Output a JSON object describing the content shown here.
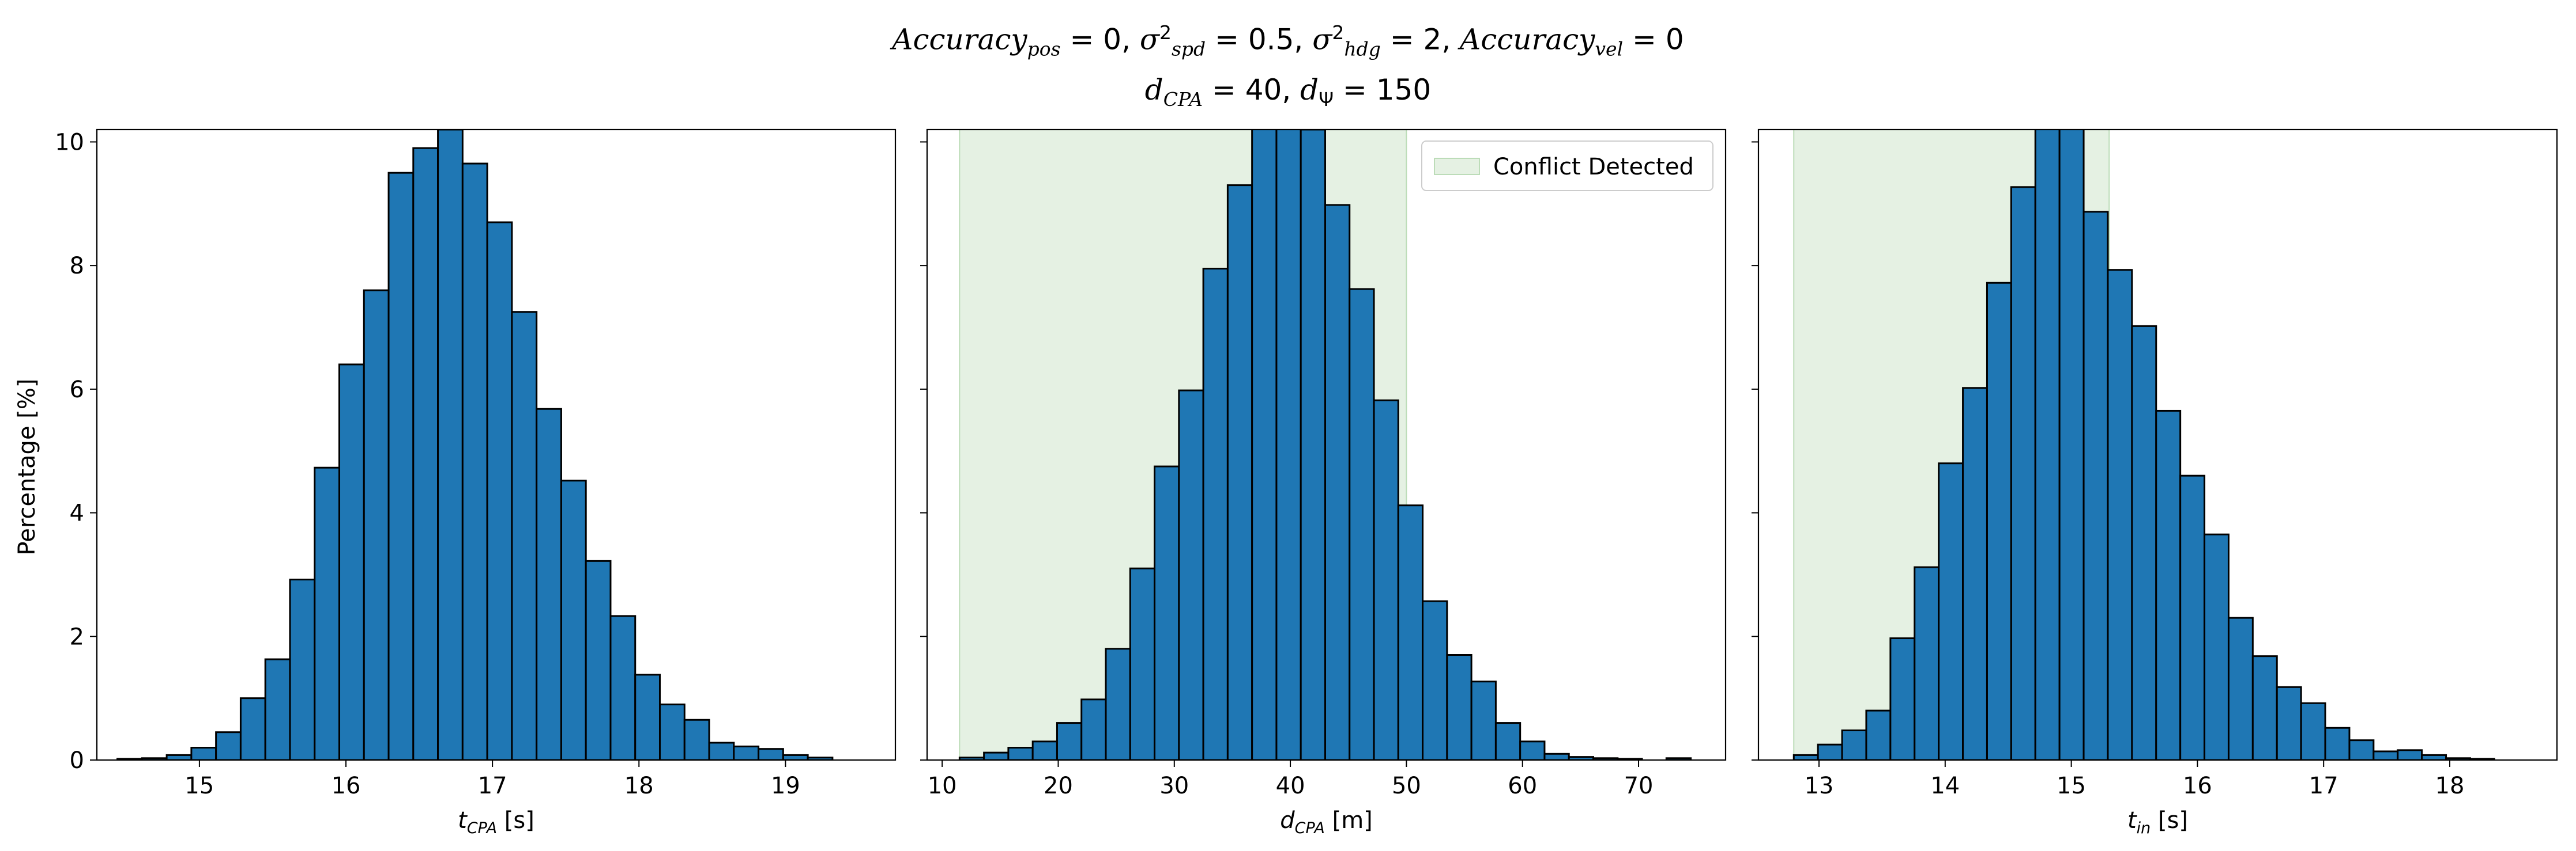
{
  "title": {
    "line1_html": "<i>Accuracy</i><sub><i>pos</i></sub> = 0, <i>σ</i><sup>2</sup><sub><i>spd</i></sub> = 0.5, <i>σ</i><sup>2</sup><sub><i>hdg</i></sub> = 2, <i>Accuracy</i><sub><i>vel</i></sub> = 0",
    "line2_html": "<i>d</i><sub><i>CPA</i></sub> = 40, <i>d</i><sub>Ψ</sub> = 150"
  },
  "colors": {
    "bar_fill": "#1f77b4",
    "bar_edge": "#000000",
    "shade_fill": "#e5f1e3",
    "shade_edge": "#bcdcb8"
  },
  "shared_y": {
    "label": "Percentage [%]",
    "ticks": [
      0,
      2,
      4,
      6,
      8,
      10
    ],
    "range": [
      0,
      10.2
    ]
  },
  "chart_data": [
    {
      "type": "bar",
      "name": "t_cpa",
      "xlabel_html": "t<tspan font-size='27' dy='9'>CPA</tspan><tspan dy='-9'> [s]</tspan>",
      "xlim": [
        14.3,
        19.75
      ],
      "xticks": [
        15,
        16,
        17,
        18,
        19
      ],
      "bin_start": 14.44,
      "bin_width": 0.1683,
      "values": [
        0.02,
        0.03,
        0.08,
        0.2,
        0.45,
        1.0,
        1.63,
        2.92,
        4.73,
        6.4,
        7.6,
        9.5,
        9.9,
        10.2,
        9.65,
        8.7,
        7.25,
        5.68,
        4.52,
        3.22,
        2.33,
        1.38,
        0.9,
        0.65,
        0.28,
        0.22,
        0.18,
        0.08,
        0.04
      ]
    },
    {
      "type": "bar",
      "name": "d_cpa",
      "xlabel_html": "d<tspan font-size='27' dy='9'>CPA</tspan><tspan dy='-9'> [m]</tspan>",
      "xlim": [
        8.7,
        77.5
      ],
      "xticks": [
        10,
        20,
        30,
        40,
        50,
        60,
        70
      ],
      "bin_start": 11.5,
      "bin_width": 2.1,
      "values": [
        0.04,
        0.12,
        0.2,
        0.3,
        0.6,
        0.98,
        1.8,
        3.1,
        4.75,
        5.98,
        7.95,
        9.3,
        10.7,
        10.6,
        10.2,
        8.98,
        7.62,
        5.82,
        4.12,
        2.57,
        1.7,
        1.27,
        0.6,
        0.3,
        0.1,
        0.05,
        0.03,
        0.02,
        0.0,
        0.03
      ],
      "shade_range": [
        11.5,
        50.0
      ],
      "legend": {
        "label": "Conflict Detected",
        "placement": "top-right"
      }
    },
    {
      "type": "bar",
      "name": "t_in",
      "xlabel_html": "t<tspan font-size='27' dy='9'>in</tspan><tspan dy='-9'> [s]</tspan>",
      "xlim": [
        12.52,
        18.85
      ],
      "xticks": [
        13,
        14,
        15,
        16,
        17,
        18
      ],
      "bin_start": 12.8,
      "bin_width": 0.1915,
      "values": [
        0.08,
        0.25,
        0.48,
        0.8,
        1.97,
        3.12,
        4.8,
        6.02,
        7.72,
        9.27,
        10.3,
        10.3,
        8.87,
        7.93,
        7.02,
        5.65,
        4.6,
        3.65,
        2.3,
        1.68,
        1.18,
        0.92,
        0.52,
        0.32,
        0.14,
        0.16,
        0.08,
        0.03,
        0.02
      ],
      "shade_range": [
        12.8,
        15.3
      ]
    }
  ]
}
